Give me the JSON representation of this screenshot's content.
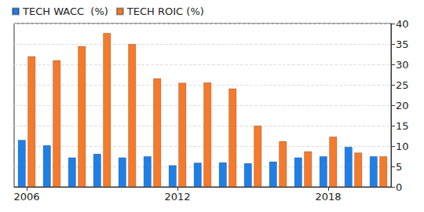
{
  "chart_data": {
    "type": "bar",
    "categories": [
      "2006",
      null,
      null,
      null,
      null,
      null,
      "2012",
      null,
      null,
      null,
      null,
      null,
      "2018",
      null,
      null
    ],
    "series": [
      {
        "name": "TECH WACC  (%)",
        "color": "#1f7fe6",
        "values": [
          11.5,
          10.2,
          7.2,
          8.1,
          7.2,
          7.5,
          5.3,
          5.9,
          6.0,
          5.8,
          6.2,
          7.2,
          7.5,
          9.8,
          7.5
        ]
      },
      {
        "name": "TECH ROIC (%)",
        "color": "#f57a2c",
        "values": [
          32,
          31,
          34.5,
          37.7,
          35,
          26.6,
          25.5,
          25.6,
          24.1,
          15,
          11.2,
          8.7,
          12.3,
          8.4,
          7.5
        ]
      }
    ],
    "ylim": [
      0,
      40
    ],
    "yticks": [
      0,
      5,
      10,
      15,
      20,
      25,
      30,
      35,
      40
    ],
    "grid": true,
    "legend": "top-left"
  }
}
